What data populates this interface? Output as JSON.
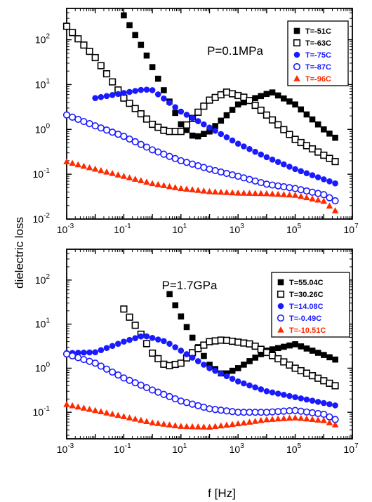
{
  "figure": {
    "ylabel": "dielectric loss",
    "xlabel": "f [Hz]"
  },
  "colors": {
    "black": "#000000",
    "blue": "#1a1aff",
    "red": "#ff2a00",
    "axis": "#000000"
  },
  "chart_data": [
    {
      "type": "scatter",
      "annotation": "P=0.1MPa",
      "x_scale": "log",
      "y_scale": "log",
      "xlim": [
        0.001,
        10000000
      ],
      "ylim": [
        0.01,
        500
      ],
      "x_tick_labels": [
        {
          "base": "10",
          "exp": "-3"
        },
        {
          "base": "10",
          "exp": "-1"
        },
        {
          "base": "10",
          "exp": "1"
        },
        {
          "base": "10",
          "exp": "3"
        },
        {
          "base": "10",
          "exp": "5"
        },
        {
          "base": "10",
          "exp": "7"
        }
      ],
      "y_tick_labels": [
        {
          "base": "10",
          "exp": "-2"
        },
        {
          "base": "10",
          "exp": "-1"
        },
        {
          "base": "10",
          "exp": "0"
        },
        {
          "base": "10",
          "exp": "1"
        },
        {
          "base": "10",
          "exp": "2"
        }
      ],
      "legend_position": "top-right",
      "series": [
        {
          "name": "T=-51C",
          "marker": "square-filled",
          "color": "#000000",
          "x": [
            0.1,
            0.5,
            2,
            10,
            30,
            100,
            1000,
            15000,
            100000,
            1000000,
            3000000
          ],
          "y": [
            350,
            60,
            10,
            1.3,
            0.65,
            0.9,
            3.6,
            6.8,
            3.6,
            1.0,
            0.6
          ]
        },
        {
          "name": "T=-63C",
          "marker": "square-open",
          "color": "#000000",
          "x": [
            0.001,
            0.01,
            0.1,
            1,
            3,
            10,
            30,
            100,
            400,
            2000,
            100000,
            3000000
          ],
          "y": [
            200,
            40,
            5,
            1.3,
            0.9,
            0.9,
            2.0,
            4.5,
            6.8,
            5.0,
            0.6,
            0.18
          ]
        },
        {
          "name": "T=-75C",
          "marker": "circle-filled",
          "color": "#1a1aff",
          "x": [
            0.01,
            0.1,
            0.5,
            1,
            3,
            10,
            100,
            1000,
            10000,
            100000,
            3000000
          ],
          "y": [
            5,
            6.5,
            7.8,
            7.5,
            4.5,
            2.5,
            1.1,
            0.48,
            0.24,
            0.13,
            0.06
          ]
        },
        {
          "name": "T=-87C",
          "marker": "circle-open",
          "color": "#1a1aff",
          "x": [
            0.001,
            0.01,
            0.1,
            1,
            10,
            100,
            1000,
            10000,
            100000,
            1000000,
            3000000
          ],
          "y": [
            2.1,
            1.2,
            0.7,
            0.35,
            0.2,
            0.13,
            0.09,
            0.06,
            0.048,
            0.035,
            0.024
          ]
        },
        {
          "name": "T=-96C",
          "marker": "triangle-filled",
          "color": "#ff2a00",
          "x": [
            0.001,
            0.01,
            0.1,
            1,
            10,
            100,
            1000,
            10000,
            100000,
            1000000,
            3000000
          ],
          "y": [
            0.19,
            0.13,
            0.09,
            0.062,
            0.048,
            0.041,
            0.038,
            0.037,
            0.034,
            0.025,
            0.014
          ]
        }
      ]
    },
    {
      "type": "scatter",
      "annotation": "P=1.7GPa",
      "x_scale": "log",
      "y_scale": "log",
      "xlim": [
        0.001,
        10000000
      ],
      "ylim": [
        0.025,
        500
      ],
      "x_tick_labels": [
        {
          "base": "10",
          "exp": "-3"
        },
        {
          "base": "10",
          "exp": "-1"
        },
        {
          "base": "10",
          "exp": "1"
        },
        {
          "base": "10",
          "exp": "3"
        },
        {
          "base": "10",
          "exp": "5"
        },
        {
          "base": "10",
          "exp": "7"
        }
      ],
      "y_tick_labels": [
        {
          "base": "10",
          "exp": "-1"
        },
        {
          "base": "10",
          "exp": "0"
        },
        {
          "base": "10",
          "exp": "1"
        },
        {
          "base": "10",
          "exp": "2"
        }
      ],
      "legend_position": "top-right",
      "series": [
        {
          "name": "T=55.04C",
          "marker": "square-filled",
          "color": "#000000",
          "x": [
            4,
            10,
            30,
            100,
            300,
            1000,
            10000,
            100000,
            1000000,
            3000000
          ],
          "y": [
            48,
            15,
            4,
            1.2,
            0.7,
            1.0,
            2.5,
            3.5,
            2.0,
            1.5
          ]
        },
        {
          "name": "T=30.26C",
          "marker": "square-open",
          "color": "#000000",
          "x": [
            0.1,
            0.3,
            1,
            3,
            10,
            30,
            100,
            300,
            3000,
            100000,
            3000000
          ],
          "y": [
            22,
            8,
            2.2,
            1.1,
            1.3,
            2.5,
            4.0,
            4.4,
            3.5,
            1.0,
            0.38
          ]
        },
        {
          "name": "T=14.08C",
          "marker": "circle-filled",
          "color": "#1a1aff",
          "x": [
            0.001,
            0.01,
            0.1,
            0.5,
            3,
            10,
            100,
            1000,
            10000,
            100000,
            3000000
          ],
          "y": [
            2.2,
            2.3,
            4.0,
            5.5,
            4.0,
            2.5,
            1.0,
            0.5,
            0.3,
            0.22,
            0.14
          ]
        },
        {
          "name": "T=-0.49C",
          "marker": "circle-open",
          "color": "#1a1aff",
          "x": [
            0.001,
            0.01,
            0.1,
            1,
            10,
            100,
            1000,
            10000,
            100000,
            1000000,
            3000000
          ],
          "y": [
            2.1,
            1.3,
            0.6,
            0.32,
            0.18,
            0.12,
            0.1,
            0.1,
            0.11,
            0.09,
            0.065
          ]
        },
        {
          "name": "T=-10.51C",
          "marker": "triangle-filled",
          "color": "#ff2a00",
          "x": [
            0.001,
            0.01,
            0.1,
            1,
            10,
            100,
            1000,
            10000,
            100000,
            1000000,
            3000000
          ],
          "y": [
            0.15,
            0.11,
            0.08,
            0.058,
            0.048,
            0.046,
            0.055,
            0.068,
            0.075,
            0.065,
            0.05
          ]
        }
      ]
    }
  ]
}
